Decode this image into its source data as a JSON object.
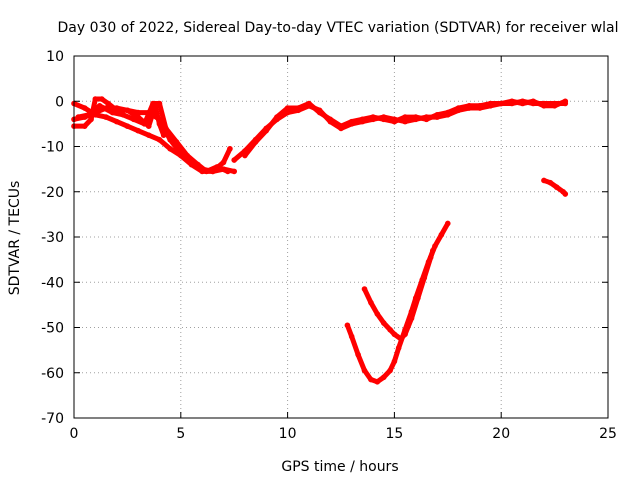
{
  "chart_data": {
    "type": "scatter",
    "title": "Day 030 of 2022, Sidereal Day-to-day VTEC variation (SDTVAR) for receiver wlal",
    "xlabel": "GPS time / hours",
    "ylabel": "SDTVAR / TECUs",
    "xlim": [
      0,
      25
    ],
    "ylim": [
      -70,
      10
    ],
    "xticks": [
      0,
      5,
      10,
      15,
      20,
      25
    ],
    "yticks": [
      10,
      0,
      -10,
      -20,
      -30,
      -40,
      -50,
      -60,
      -70
    ],
    "grid": true,
    "legend": "none",
    "series_color": "#ff0000",
    "series": [
      {
        "values": [
          [
            0.0,
            -0.5
          ],
          [
            0.5,
            -1.5
          ],
          [
            1.0,
            -3.0
          ],
          [
            1.5,
            -3.5
          ],
          [
            2.0,
            -4.5
          ],
          [
            2.5,
            -5.5
          ],
          [
            3.0,
            -6.5
          ],
          [
            3.5,
            -7.5
          ],
          [
            4.0,
            -8.5
          ],
          [
            4.5,
            -10.5
          ],
          [
            5.0,
            -12.0
          ],
          [
            5.5,
            -14.0
          ],
          [
            6.0,
            -15.5
          ],
          [
            6.5,
            -15.5
          ],
          [
            7.0,
            -15.0
          ],
          [
            7.5,
            -15.5
          ]
        ]
      },
      {
        "values": [
          [
            0.0,
            -4.0
          ],
          [
            0.5,
            -3.5
          ],
          [
            1.0,
            -2.5
          ],
          [
            1.5,
            -1.5
          ],
          [
            2.0,
            -1.5
          ],
          [
            2.5,
            -2.0
          ],
          [
            3.0,
            -2.5
          ],
          [
            3.5,
            -2.5
          ],
          [
            4.0,
            -4.0
          ],
          [
            4.5,
            -8.5
          ],
          [
            5.0,
            -11.5
          ],
          [
            5.5,
            -13.5
          ],
          [
            6.0,
            -15.0
          ],
          [
            6.5,
            -15.5
          ],
          [
            7.0,
            -13.5
          ],
          [
            7.3,
            -10.5
          ]
        ]
      },
      {
        "values": [
          [
            0.0,
            -5.5
          ],
          [
            0.5,
            -5.5
          ],
          [
            0.8,
            -4.0
          ],
          [
            1.0,
            0.5
          ],
          [
            1.3,
            0.5
          ],
          [
            1.6,
            -0.5
          ],
          [
            2.0,
            -2.0
          ],
          [
            2.5,
            -2.0
          ],
          [
            3.0,
            -3.5
          ],
          [
            3.5,
            -5.5
          ],
          [
            3.8,
            -1.0
          ],
          [
            4.0,
            -5.0
          ],
          [
            4.2,
            -7.5
          ]
        ]
      },
      {
        "values": [
          [
            0.2,
            -3.5
          ],
          [
            0.7,
            -3.0
          ],
          [
            1.2,
            -1.0
          ],
          [
            1.8,
            -2.5
          ],
          [
            2.3,
            -3.0
          ],
          [
            2.8,
            -4.0
          ],
          [
            3.3,
            -5.0
          ],
          [
            3.7,
            -0.5
          ],
          [
            4.0,
            -0.5
          ],
          [
            4.3,
            -6.0
          ],
          [
            4.8,
            -9.0
          ],
          [
            5.3,
            -12.0
          ],
          [
            5.8,
            -14.0
          ],
          [
            6.2,
            -15.5
          ],
          [
            6.7,
            -14.5
          ],
          [
            7.2,
            -15.5
          ]
        ]
      },
      {
        "values": [
          [
            7.5,
            -13.0
          ],
          [
            8.0,
            -11.0
          ],
          [
            8.5,
            -8.5
          ],
          [
            9.0,
            -6.0
          ],
          [
            9.5,
            -4.0
          ],
          [
            10.0,
            -2.5
          ],
          [
            10.5,
            -2.0
          ],
          [
            11.0,
            -1.0
          ],
          [
            11.5,
            -2.0
          ],
          [
            12.0,
            -4.5
          ],
          [
            12.5,
            -6.0
          ],
          [
            13.0,
            -5.0
          ],
          [
            13.5,
            -4.5
          ],
          [
            14.0,
            -4.0
          ],
          [
            14.5,
            -3.5
          ],
          [
            15.0,
            -4.0
          ],
          [
            15.5,
            -4.5
          ],
          [
            16.0,
            -4.0
          ],
          [
            16.5,
            -3.5
          ],
          [
            17.0,
            -3.5
          ],
          [
            17.5,
            -3.0
          ],
          [
            18.0,
            -2.0
          ],
          [
            18.5,
            -1.5
          ],
          [
            19.0,
            -1.5
          ],
          [
            19.5,
            -1.0
          ],
          [
            20.0,
            -0.5
          ],
          [
            20.5,
            -0.5
          ],
          [
            21.0,
            0.0
          ],
          [
            21.5,
            -0.5
          ],
          [
            22.0,
            -0.5
          ],
          [
            22.5,
            -0.5
          ],
          [
            23.0,
            -0.5
          ]
        ]
      },
      {
        "values": [
          [
            8.0,
            -12.0
          ],
          [
            8.5,
            -9.0
          ],
          [
            9.0,
            -6.5
          ],
          [
            9.5,
            -3.5
          ],
          [
            10.0,
            -1.5
          ],
          [
            10.5,
            -1.5
          ],
          [
            11.0,
            -0.5
          ],
          [
            11.5,
            -2.5
          ],
          [
            12.0,
            -4.0
          ],
          [
            12.5,
            -5.5
          ],
          [
            13.0,
            -4.5
          ],
          [
            13.5,
            -4.0
          ],
          [
            14.0,
            -3.5
          ],
          [
            14.5,
            -4.0
          ],
          [
            15.0,
            -4.5
          ],
          [
            15.5,
            -3.5
          ],
          [
            16.0,
            -3.5
          ],
          [
            16.5,
            -4.0
          ],
          [
            17.0,
            -3.0
          ],
          [
            17.5,
            -2.5
          ],
          [
            18.0,
            -1.5
          ],
          [
            18.5,
            -1.0
          ],
          [
            19.0,
            -1.0
          ],
          [
            19.5,
            -0.5
          ],
          [
            20.0,
            -0.5
          ],
          [
            20.5,
            0.0
          ],
          [
            21.0,
            -0.5
          ],
          [
            21.5,
            0.0
          ],
          [
            22.0,
            -1.0
          ],
          [
            22.5,
            -1.0
          ],
          [
            23.0,
            0.0
          ]
        ]
      },
      {
        "values": [
          [
            22.0,
            -17.5
          ],
          [
            22.3,
            -18.0
          ],
          [
            22.6,
            -19.0
          ],
          [
            22.9,
            -20.0
          ],
          [
            23.0,
            -20.5
          ]
        ]
      },
      {
        "values": [
          [
            12.8,
            -49.5
          ],
          [
            13.0,
            -52.0
          ],
          [
            13.3,
            -56.0
          ],
          [
            13.6,
            -59.5
          ],
          [
            13.9,
            -61.5
          ],
          [
            14.2,
            -62.0
          ],
          [
            14.5,
            -61.0
          ],
          [
            14.8,
            -59.5
          ],
          [
            15.0,
            -57.5
          ],
          [
            15.2,
            -54.5
          ],
          [
            15.5,
            -50.5
          ],
          [
            15.8,
            -46.5
          ],
          [
            16.0,
            -43.5
          ],
          [
            16.3,
            -39.5
          ],
          [
            16.6,
            -35.5
          ],
          [
            16.9,
            -32.0
          ],
          [
            17.2,
            -29.5
          ],
          [
            17.5,
            -27.0
          ]
        ]
      },
      {
        "values": [
          [
            13.6,
            -41.5
          ],
          [
            13.9,
            -44.5
          ],
          [
            14.2,
            -47.0
          ],
          [
            14.5,
            -49.0
          ],
          [
            14.8,
            -50.5
          ],
          [
            15.0,
            -51.5
          ],
          [
            15.3,
            -52.5
          ],
          [
            15.5,
            -51.5
          ],
          [
            15.8,
            -48.0
          ],
          [
            16.1,
            -43.5
          ],
          [
            16.4,
            -39.0
          ],
          [
            16.7,
            -34.5
          ],
          [
            16.8,
            -33.0
          ]
        ]
      }
    ]
  }
}
